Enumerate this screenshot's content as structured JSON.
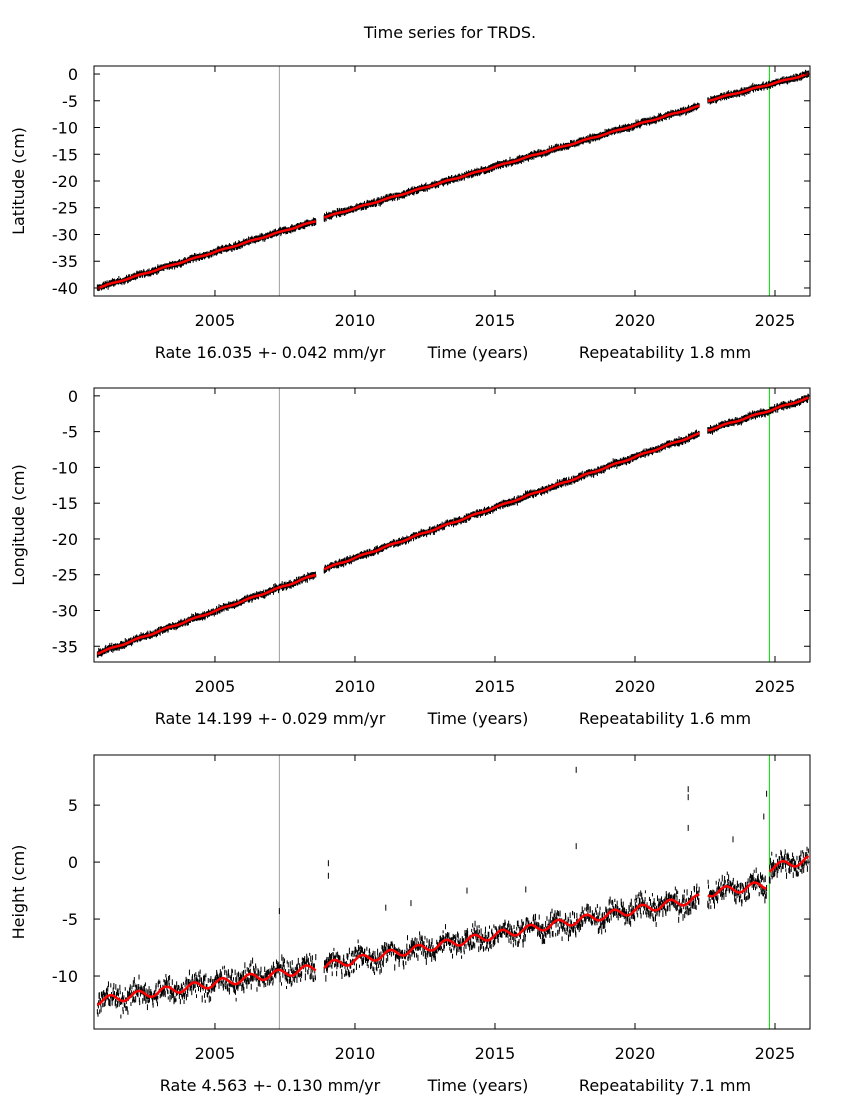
{
  "title": "Time series for TRDS.",
  "colors": {
    "data": "#000000",
    "fit": "#ff0000",
    "marker_gray": "#a0a0a0",
    "marker_green": "#00dd00"
  },
  "chart_data": [
    {
      "type": "scatter",
      "ylabel": "Latitude (cm)",
      "xlabel": "Time (years)",
      "rate_text": "Rate 16.035 +- 0.042 mm/yr",
      "repeat_text": "Repeatability 1.8 mm",
      "xlim": [
        2000.68,
        2026.25
      ],
      "ylim": [
        -41.5,
        1.5
      ],
      "xticks": [
        2005,
        2010,
        2015,
        2020,
        2025
      ],
      "yticks": [
        0,
        -5,
        -10,
        -15,
        -20,
        -25,
        -30,
        -35,
        -40
      ],
      "vlines": [
        {
          "x": 2007.3,
          "color": "gray"
        },
        {
          "x": 2024.8,
          "color": "green"
        }
      ],
      "fit": [
        [
          [
            2000.8,
            -40.0
          ],
          [
            2008.6,
            -27.5
          ]
        ],
        [
          [
            2008.9,
            -26.8
          ],
          [
            2022.3,
            -6.0
          ]
        ],
        [
          [
            2022.6,
            -5.0
          ],
          [
            2026.2,
            0.0
          ]
        ]
      ],
      "outliers": []
    },
    {
      "type": "scatter",
      "ylabel": "Longitude (cm)",
      "xlabel": "Time (years)",
      "rate_text": "Rate 14.199 +- 0.029 mm/yr",
      "repeat_text": "Repeatability 1.6 mm",
      "xlim": [
        2000.68,
        2026.25
      ],
      "ylim": [
        -37.2,
        1.1
      ],
      "xticks": [
        2005,
        2010,
        2015,
        2020,
        2025
      ],
      "yticks": [
        0,
        -5,
        -10,
        -15,
        -20,
        -25,
        -30,
        -35
      ],
      "vlines": [
        {
          "x": 2007.3,
          "color": "gray"
        },
        {
          "x": 2024.8,
          "color": "green"
        }
      ],
      "fit": [
        [
          [
            2000.8,
            -36.0
          ],
          [
            2008.6,
            -25.0
          ]
        ],
        [
          [
            2008.9,
            -24.2
          ],
          [
            2022.3,
            -5.3
          ]
        ],
        [
          [
            2022.6,
            -4.8
          ],
          [
            2026.2,
            -0.3
          ]
        ]
      ],
      "outliers": []
    },
    {
      "type": "scatter",
      "ylabel": "Height (cm)",
      "xlabel": "Time (years)",
      "rate_text": "Rate 4.563 +- 0.130 mm/yr",
      "repeat_text": "Repeatability 7.1 mm",
      "xlim": [
        2000.68,
        2026.25
      ],
      "ylim": [
        -14.65,
        9.4
      ],
      "xticks": [
        2005,
        2010,
        2015,
        2020,
        2025
      ],
      "yticks": [
        5,
        0,
        -5,
        -10
      ],
      "vlines": [
        {
          "x": 2007.3,
          "color": "gray"
        },
        {
          "x": 2024.8,
          "color": "green"
        }
      ],
      "fit": [
        [
          [
            2000.8,
            -12.2
          ],
          [
            2008.6,
            -9.3
          ]
        ],
        [
          [
            2008.9,
            -9.1
          ],
          [
            2022.3,
            -3.2
          ]
        ],
        [
          [
            2022.6,
            -2.7
          ],
          [
            2024.7,
            -2.0
          ]
        ],
        [
          [
            2024.8,
            -0.5
          ],
          [
            2026.2,
            0.2
          ]
        ]
      ],
      "outliers": [
        [
          2007.3,
          -4.3
        ],
        [
          2009.05,
          -0.1
        ],
        [
          2009.05,
          -1.2
        ],
        [
          2011.1,
          -4.0
        ],
        [
          2012.0,
          -3.6
        ],
        [
          2016.1,
          -2.4
        ],
        [
          2017.9,
          8.1
        ],
        [
          2017.9,
          1.4
        ],
        [
          2021.9,
          6.4
        ],
        [
          2021.9,
          5.7
        ],
        [
          2021.9,
          3.0
        ],
        [
          2023.5,
          2.0
        ],
        [
          2024.7,
          6.0
        ],
        [
          2024.6,
          4.0
        ],
        [
          2014.0,
          -2.5
        ]
      ]
    }
  ]
}
